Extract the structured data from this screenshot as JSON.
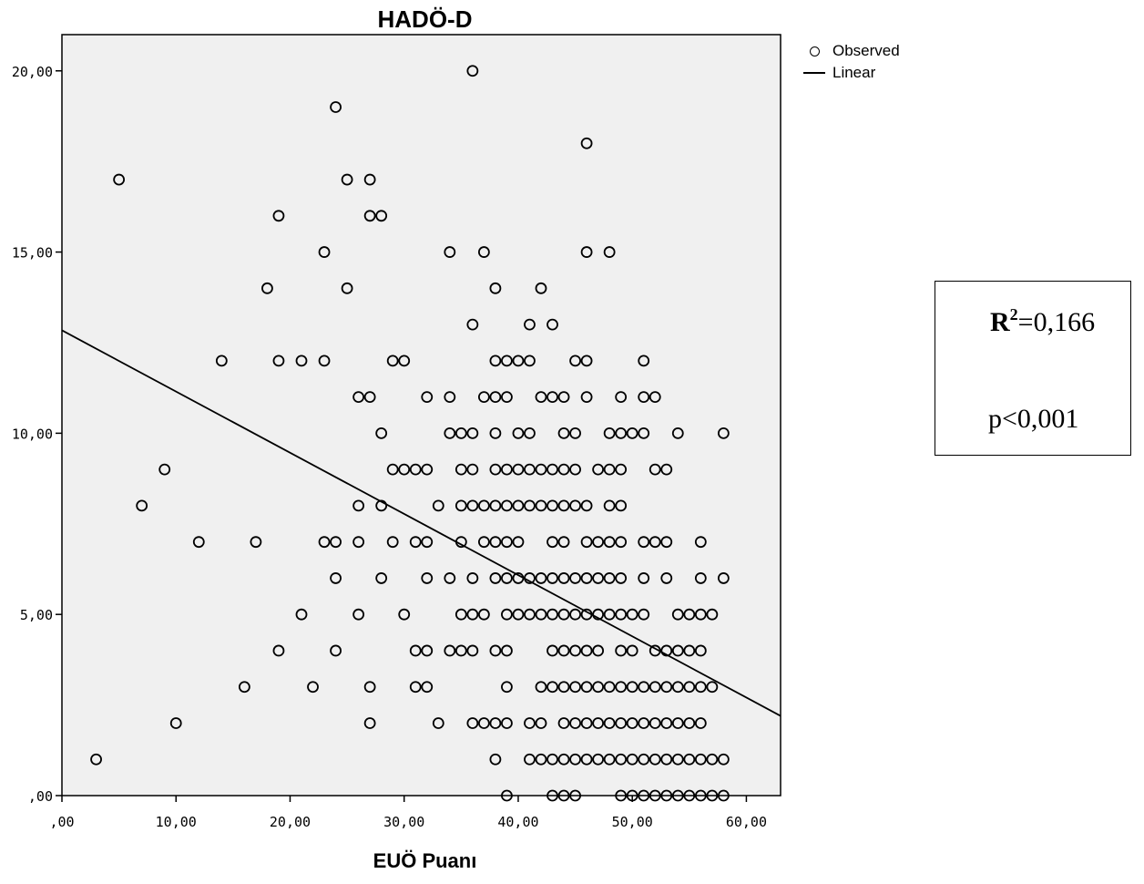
{
  "chart_data": {
    "type": "scatter",
    "title": "HADÖ-D",
    "xlabel": "EUÖ Puanı",
    "ylabel": "",
    "xlim": [
      0,
      63
    ],
    "ylim": [
      0,
      21
    ],
    "x_ticks": [
      0,
      10,
      20,
      30,
      40,
      50,
      60
    ],
    "x_tick_labels": [
      ",00",
      "10,00",
      "20,00",
      "30,00",
      "40,00",
      "50,00",
      "60,00"
    ],
    "y_ticks": [
      0,
      5,
      10,
      15,
      20
    ],
    "y_tick_labels": [
      ",00",
      "5,00",
      "10,00",
      "15,00",
      "20,00"
    ],
    "grid": false,
    "background": "#f0f0f0",
    "legend": {
      "placement": "top-right outside",
      "entries": [
        {
          "label": "Observed",
          "marker": "circle"
        },
        {
          "label": "Linear",
          "marker": "line"
        }
      ]
    },
    "series": [
      {
        "name": "Observed",
        "kind": "scatter",
        "points": [
          [
            36,
            20
          ],
          [
            24,
            19
          ],
          [
            46,
            18
          ],
          [
            5,
            17
          ],
          [
            25,
            17
          ],
          [
            27,
            17
          ],
          [
            19,
            16
          ],
          [
            27,
            16
          ],
          [
            28,
            16
          ],
          [
            23,
            15
          ],
          [
            34,
            15
          ],
          [
            37,
            15
          ],
          [
            46,
            15
          ],
          [
            48,
            15
          ],
          [
            18,
            14
          ],
          [
            25,
            14
          ],
          [
            38,
            14
          ],
          [
            42,
            14
          ],
          [
            36,
            13
          ],
          [
            41,
            13
          ],
          [
            43,
            13
          ],
          [
            14,
            12
          ],
          [
            19,
            12
          ],
          [
            21,
            12
          ],
          [
            23,
            12
          ],
          [
            29,
            12
          ],
          [
            30,
            12
          ],
          [
            38,
            12
          ],
          [
            39,
            12
          ],
          [
            40,
            12
          ],
          [
            41,
            12
          ],
          [
            45,
            12
          ],
          [
            46,
            12
          ],
          [
            51,
            12
          ],
          [
            26,
            11
          ],
          [
            27,
            11
          ],
          [
            32,
            11
          ],
          [
            34,
            11
          ],
          [
            37,
            11
          ],
          [
            38,
            11
          ],
          [
            39,
            11
          ],
          [
            42,
            11
          ],
          [
            43,
            11
          ],
          [
            44,
            11
          ],
          [
            46,
            11
          ],
          [
            49,
            11
          ],
          [
            51,
            11
          ],
          [
            52,
            11
          ],
          [
            28,
            10
          ],
          [
            34,
            10
          ],
          [
            35,
            10
          ],
          [
            36,
            10
          ],
          [
            38,
            10
          ],
          [
            40,
            10
          ],
          [
            41,
            10
          ],
          [
            44,
            10
          ],
          [
            45,
            10
          ],
          [
            48,
            10
          ],
          [
            49,
            10
          ],
          [
            50,
            10
          ],
          [
            51,
            10
          ],
          [
            54,
            10
          ],
          [
            58,
            10
          ],
          [
            9,
            9
          ],
          [
            29,
            9
          ],
          [
            30,
            9
          ],
          [
            31,
            9
          ],
          [
            32,
            9
          ],
          [
            35,
            9
          ],
          [
            36,
            9
          ],
          [
            38,
            9
          ],
          [
            39,
            9
          ],
          [
            40,
            9
          ],
          [
            41,
            9
          ],
          [
            42,
            9
          ],
          [
            43,
            9
          ],
          [
            44,
            9
          ],
          [
            45,
            9
          ],
          [
            47,
            9
          ],
          [
            48,
            9
          ],
          [
            49,
            9
          ],
          [
            52,
            9
          ],
          [
            53,
            9
          ],
          [
            7,
            8
          ],
          [
            26,
            8
          ],
          [
            28,
            8
          ],
          [
            33,
            8
          ],
          [
            35,
            8
          ],
          [
            36,
            8
          ],
          [
            37,
            8
          ],
          [
            38,
            8
          ],
          [
            39,
            8
          ],
          [
            40,
            8
          ],
          [
            41,
            8
          ],
          [
            42,
            8
          ],
          [
            43,
            8
          ],
          [
            44,
            8
          ],
          [
            45,
            8
          ],
          [
            46,
            8
          ],
          [
            48,
            8
          ],
          [
            49,
            8
          ],
          [
            12,
            7
          ],
          [
            17,
            7
          ],
          [
            23,
            7
          ],
          [
            24,
            7
          ],
          [
            26,
            7
          ],
          [
            29,
            7
          ],
          [
            31,
            7
          ],
          [
            32,
            7
          ],
          [
            35,
            7
          ],
          [
            37,
            7
          ],
          [
            38,
            7
          ],
          [
            39,
            7
          ],
          [
            40,
            7
          ],
          [
            43,
            7
          ],
          [
            44,
            7
          ],
          [
            46,
            7
          ],
          [
            47,
            7
          ],
          [
            48,
            7
          ],
          [
            49,
            7
          ],
          [
            51,
            7
          ],
          [
            52,
            7
          ],
          [
            53,
            7
          ],
          [
            56,
            7
          ],
          [
            24,
            6
          ],
          [
            28,
            6
          ],
          [
            32,
            6
          ],
          [
            34,
            6
          ],
          [
            36,
            6
          ],
          [
            38,
            6
          ],
          [
            39,
            6
          ],
          [
            40,
            6
          ],
          [
            41,
            6
          ],
          [
            42,
            6
          ],
          [
            43,
            6
          ],
          [
            44,
            6
          ],
          [
            45,
            6
          ],
          [
            46,
            6
          ],
          [
            47,
            6
          ],
          [
            48,
            6
          ],
          [
            49,
            6
          ],
          [
            51,
            6
          ],
          [
            53,
            6
          ],
          [
            56,
            6
          ],
          [
            58,
            6
          ],
          [
            21,
            5
          ],
          [
            26,
            5
          ],
          [
            30,
            5
          ],
          [
            35,
            5
          ],
          [
            36,
            5
          ],
          [
            37,
            5
          ],
          [
            39,
            5
          ],
          [
            40,
            5
          ],
          [
            41,
            5
          ],
          [
            42,
            5
          ],
          [
            43,
            5
          ],
          [
            44,
            5
          ],
          [
            45,
            5
          ],
          [
            46,
            5
          ],
          [
            47,
            5
          ],
          [
            48,
            5
          ],
          [
            49,
            5
          ],
          [
            50,
            5
          ],
          [
            51,
            5
          ],
          [
            54,
            5
          ],
          [
            55,
            5
          ],
          [
            56,
            5
          ],
          [
            57,
            5
          ],
          [
            19,
            4
          ],
          [
            24,
            4
          ],
          [
            31,
            4
          ],
          [
            32,
            4
          ],
          [
            34,
            4
          ],
          [
            35,
            4
          ],
          [
            36,
            4
          ],
          [
            38,
            4
          ],
          [
            39,
            4
          ],
          [
            43,
            4
          ],
          [
            44,
            4
          ],
          [
            45,
            4
          ],
          [
            46,
            4
          ],
          [
            47,
            4
          ],
          [
            49,
            4
          ],
          [
            50,
            4
          ],
          [
            52,
            4
          ],
          [
            53,
            4
          ],
          [
            54,
            4
          ],
          [
            55,
            4
          ],
          [
            56,
            4
          ],
          [
            16,
            3
          ],
          [
            22,
            3
          ],
          [
            27,
            3
          ],
          [
            31,
            3
          ],
          [
            32,
            3
          ],
          [
            39,
            3
          ],
          [
            42,
            3
          ],
          [
            43,
            3
          ],
          [
            44,
            3
          ],
          [
            45,
            3
          ],
          [
            46,
            3
          ],
          [
            47,
            3
          ],
          [
            48,
            3
          ],
          [
            49,
            3
          ],
          [
            50,
            3
          ],
          [
            51,
            3
          ],
          [
            52,
            3
          ],
          [
            53,
            3
          ],
          [
            54,
            3
          ],
          [
            55,
            3
          ],
          [
            56,
            3
          ],
          [
            57,
            3
          ],
          [
            10,
            2
          ],
          [
            27,
            2
          ],
          [
            33,
            2
          ],
          [
            36,
            2
          ],
          [
            37,
            2
          ],
          [
            38,
            2
          ],
          [
            39,
            2
          ],
          [
            41,
            2
          ],
          [
            42,
            2
          ],
          [
            44,
            2
          ],
          [
            45,
            2
          ],
          [
            46,
            2
          ],
          [
            47,
            2
          ],
          [
            48,
            2
          ],
          [
            49,
            2
          ],
          [
            50,
            2
          ],
          [
            51,
            2
          ],
          [
            52,
            2
          ],
          [
            53,
            2
          ],
          [
            54,
            2
          ],
          [
            55,
            2
          ],
          [
            56,
            2
          ],
          [
            3,
            1
          ],
          [
            38,
            1
          ],
          [
            41,
            1
          ],
          [
            42,
            1
          ],
          [
            43,
            1
          ],
          [
            44,
            1
          ],
          [
            45,
            1
          ],
          [
            46,
            1
          ],
          [
            47,
            1
          ],
          [
            48,
            1
          ],
          [
            49,
            1
          ],
          [
            50,
            1
          ],
          [
            51,
            1
          ],
          [
            52,
            1
          ],
          [
            53,
            1
          ],
          [
            54,
            1
          ],
          [
            55,
            1
          ],
          [
            56,
            1
          ],
          [
            57,
            1
          ],
          [
            58,
            1
          ],
          [
            39,
            0
          ],
          [
            43,
            0
          ],
          [
            44,
            0
          ],
          [
            45,
            0
          ],
          [
            49,
            0
          ],
          [
            50,
            0
          ],
          [
            51,
            0
          ],
          [
            52,
            0
          ],
          [
            53,
            0
          ],
          [
            54,
            0
          ],
          [
            55,
            0
          ],
          [
            56,
            0
          ],
          [
            57,
            0
          ],
          [
            58,
            0
          ]
        ]
      },
      {
        "name": "Linear",
        "kind": "line",
        "points": [
          [
            0,
            12.84
          ],
          [
            63,
            2.2
          ]
        ]
      }
    ],
    "annotation": {
      "r2_label": "R",
      "r2_sup": "2",
      "r2_value": "=0,166",
      "p_text": "p<0,001"
    }
  }
}
